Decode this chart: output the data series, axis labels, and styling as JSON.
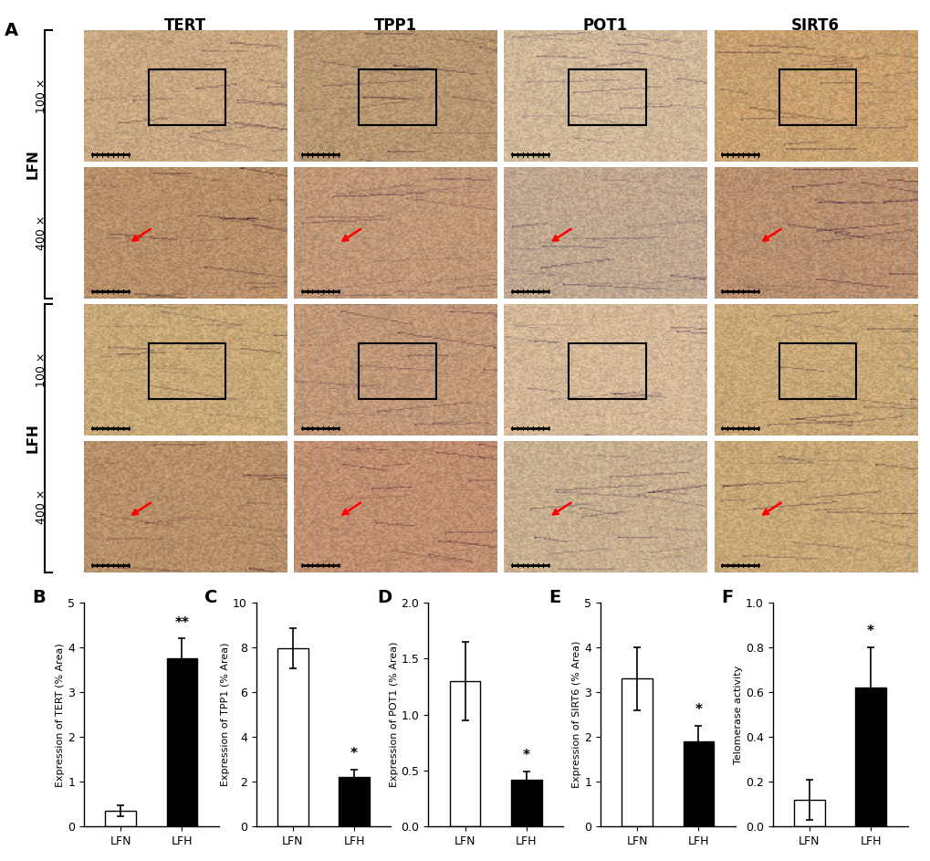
{
  "panel_label_A": "A",
  "col_labels": [
    "TERT",
    "TPP1",
    "POT1",
    "SIRT6"
  ],
  "magnification_labels": [
    "100 ×",
    "400 ×",
    "100 ×",
    "400 ×"
  ],
  "cell_colors": [
    [
      "#C8A882",
      "#B89872",
      "#D0B898",
      "#C8A070"
    ],
    [
      "#B8906A",
      "#C09878",
      "#C0A890",
      "#B89070"
    ],
    [
      "#C8A878",
      "#C09878",
      "#D4B898",
      "#C8A878"
    ],
    [
      "#B8906A",
      "#C09070",
      "#C8B090",
      "#C8A878"
    ]
  ],
  "bar_panels": [
    {
      "label": "B",
      "ylabel": "Expression of TERT (% Area)",
      "ylim": [
        0,
        5
      ],
      "yticks": [
        0,
        1,
        2,
        3,
        4,
        5
      ],
      "categories": [
        "LFN",
        "LFH"
      ],
      "values": [
        0.35,
        3.75
      ],
      "errors": [
        0.12,
        0.45
      ],
      "colors": [
        "white",
        "black"
      ],
      "significance": {
        "bar": "LFH",
        "text": "**"
      }
    },
    {
      "label": "C",
      "ylabel": "Expression of TPP1 (% Area)",
      "ylim": [
        0,
        10
      ],
      "yticks": [
        0,
        2,
        4,
        6,
        8,
        10
      ],
      "categories": [
        "LFN",
        "LFH"
      ],
      "values": [
        7.95,
        2.2
      ],
      "errors": [
        0.9,
        0.35
      ],
      "colors": [
        "white",
        "black"
      ],
      "significance": {
        "bar": "LFH",
        "text": "*"
      }
    },
    {
      "label": "D",
      "ylabel": "Expression of POT1 (% Area)",
      "ylim": [
        0,
        2.0
      ],
      "yticks": [
        0.0,
        0.5,
        1.0,
        1.5,
        2.0
      ],
      "categories": [
        "LFN",
        "LFH"
      ],
      "values": [
        1.3,
        0.42
      ],
      "errors": [
        0.35,
        0.07
      ],
      "colors": [
        "white",
        "black"
      ],
      "significance": {
        "bar": "LFH",
        "text": "*"
      }
    },
    {
      "label": "E",
      "ylabel": "Expression of SIRT6 (% Area)",
      "ylim": [
        0,
        5
      ],
      "yticks": [
        0,
        1,
        2,
        3,
        4,
        5
      ],
      "categories": [
        "LFN",
        "LFH"
      ],
      "values": [
        3.3,
        1.9
      ],
      "errors": [
        0.7,
        0.35
      ],
      "colors": [
        "white",
        "black"
      ],
      "significance": {
        "bar": "LFH",
        "text": "*"
      }
    },
    {
      "label": "F",
      "ylabel": "Telomerase activity",
      "ylim": [
        0,
        1.0
      ],
      "yticks": [
        0.0,
        0.2,
        0.4,
        0.6,
        0.8,
        1.0
      ],
      "categories": [
        "LFN",
        "LFH"
      ],
      "values": [
        0.12,
        0.62
      ],
      "errors": [
        0.09,
        0.18
      ],
      "colors": [
        "white",
        "black"
      ],
      "significance": {
        "bar": "LFH",
        "text": "*"
      }
    }
  ],
  "background_color": "#ffffff",
  "bar_edge_color": "#000000",
  "bar_width": 0.5,
  "tick_fontsize": 9,
  "label_fontsize": 10,
  "panel_label_fontsize": 14
}
